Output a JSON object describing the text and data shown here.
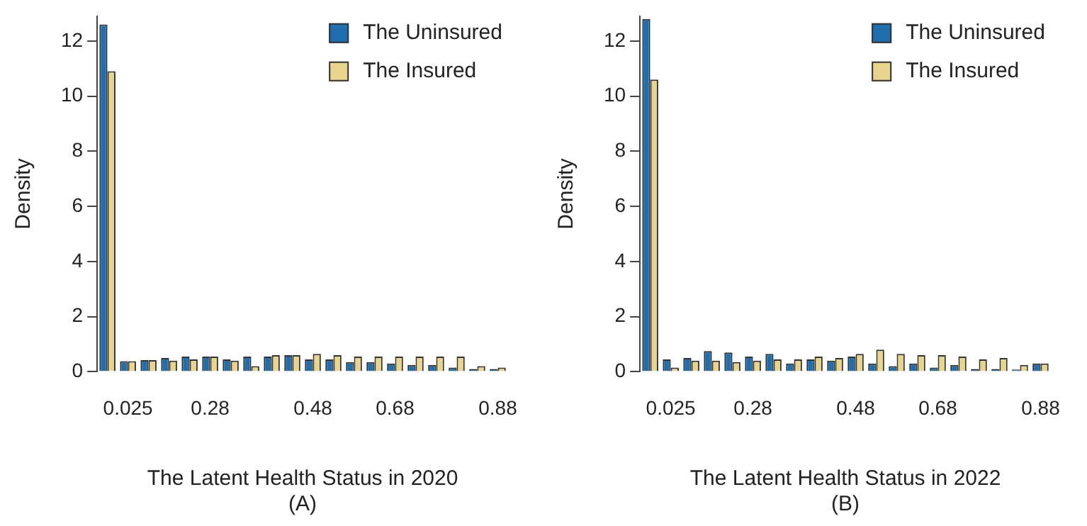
{
  "chart_data": [
    {
      "type": "bar",
      "xlabel": "The Latent Health Status in 2020",
      "ylabel": "Density",
      "annotations": [
        "(A)"
      ],
      "categories": [
        null,
        "0.025",
        null,
        null,
        null,
        "0.28",
        null,
        null,
        null,
        null,
        "0.48",
        null,
        null,
        null,
        "0.68",
        null,
        null,
        null,
        null,
        "0.88"
      ],
      "series": [
        {
          "name": "The Uninsured",
          "color": "#1f6fae",
          "values": [
            12.6,
            0.38,
            0.42,
            0.5,
            0.55,
            0.55,
            0.45,
            0.55,
            0.55,
            0.6,
            0.45,
            0.45,
            0.35,
            0.35,
            0.3,
            0.25,
            0.25,
            0.15,
            0.1,
            0.1
          ]
        },
        {
          "name": "The Insured",
          "color": "#e8d48c",
          "values": [
            10.9,
            0.38,
            0.42,
            0.4,
            0.45,
            0.55,
            0.4,
            0.2,
            0.6,
            0.6,
            0.65,
            0.6,
            0.55,
            0.55,
            0.55,
            0.55,
            0.55,
            0.55,
            0.2,
            0.15
          ]
        }
      ],
      "ylim": [
        0,
        12.9
      ],
      "yticks": [
        0,
        2,
        4,
        6,
        8,
        10,
        12
      ],
      "grid": false,
      "legend": "top right"
    },
    {
      "type": "bar",
      "xlabel": "The Latent Health Status in 2022",
      "ylabel": "Density",
      "annotations": [
        "(B)"
      ],
      "categories": [
        null,
        "0.025",
        null,
        null,
        null,
        "0.28",
        null,
        null,
        null,
        null,
        "0.48",
        null,
        null,
        null,
        "0.68",
        null,
        null,
        null,
        null,
        "0.88"
      ],
      "series": [
        {
          "name": "The Uninsured",
          "color": "#1f6fae",
          "values": [
            12.8,
            0.45,
            0.5,
            0.75,
            0.7,
            0.55,
            0.65,
            0.3,
            0.45,
            0.4,
            0.55,
            0.3,
            0.2,
            0.3,
            0.15,
            0.25,
            0.1,
            0.1,
            0.08,
            0.3
          ]
        },
        {
          "name": "The Insured",
          "color": "#e8d48c",
          "values": [
            10.6,
            0.15,
            0.4,
            0.4,
            0.35,
            0.4,
            0.45,
            0.45,
            0.55,
            0.5,
            0.65,
            0.8,
            0.65,
            0.6,
            0.6,
            0.55,
            0.45,
            0.5,
            0.25,
            0.3
          ]
        }
      ],
      "ylim": [
        0,
        12.9
      ],
      "yticks": [
        0,
        2,
        4,
        6,
        8,
        10,
        12
      ],
      "grid": false,
      "legend": "top right"
    }
  ]
}
